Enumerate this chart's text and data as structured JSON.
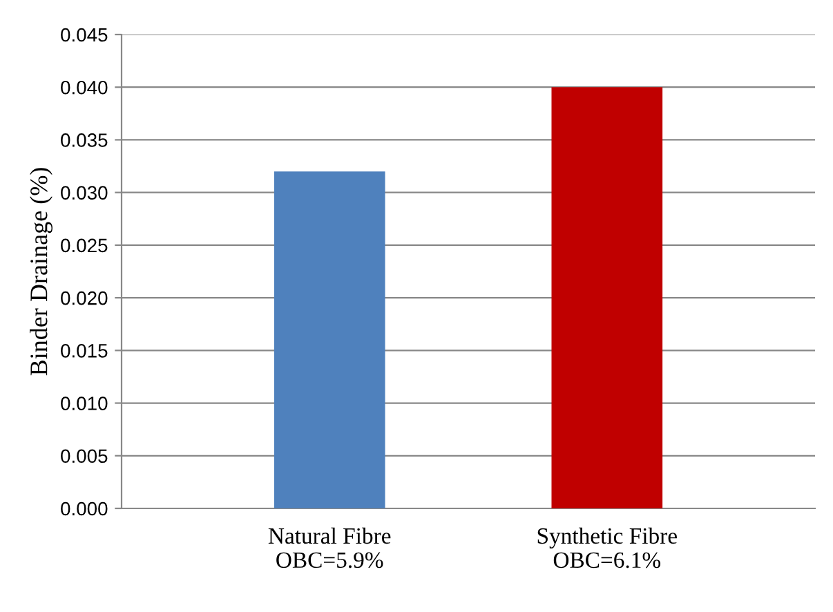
{
  "chart_data": {
    "type": "bar",
    "ylabel": "Binder Drainage (%)",
    "categories": [
      "Natural Fibre\nOBC=5.9%",
      "Synthetic Fibre\nOBC=6.1%"
    ],
    "values": [
      0.032,
      0.04
    ],
    "colors": [
      "#4f81bd",
      "#c00000"
    ],
    "ylim": [
      0,
      0.045
    ],
    "yticks": [
      {
        "value": 0,
        "label": "0.000"
      },
      {
        "value": 0.005,
        "label": "0.005"
      },
      {
        "value": 0.01,
        "label": "0.010"
      },
      {
        "value": 0.015,
        "label": "0.015"
      },
      {
        "value": 0.02,
        "label": "0.020"
      },
      {
        "value": 0.025,
        "label": "0.025"
      },
      {
        "value": 0.03,
        "label": "0.030"
      },
      {
        "value": 0.035,
        "label": "0.035"
      },
      {
        "value": 0.04,
        "label": "0.040"
      },
      {
        "value": 0.045,
        "label": "0.045"
      }
    ],
    "grid": "y",
    "legend": false
  }
}
